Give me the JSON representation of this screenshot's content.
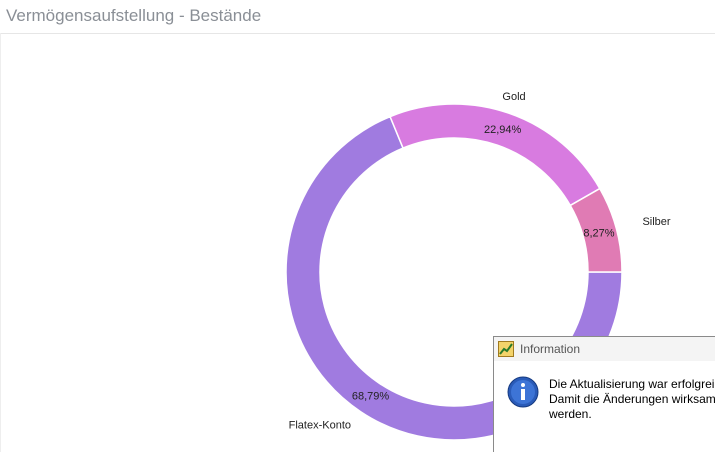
{
  "page_title": "Vermögensaufstellung - Bestände",
  "chart_data": {
    "type": "donut",
    "categories": [
      "Flatex-Konto",
      "Gold",
      "Silber"
    ],
    "values": [
      68.79,
      22.94,
      8.27
    ],
    "value_labels": [
      "68,79%",
      "22,94%",
      "8,27%"
    ],
    "colors": [
      "#a07be0",
      "#d87be0",
      "#e07bb4"
    ]
  },
  "dialog": {
    "title": "Information",
    "lines": [
      "Die Aktualisierung war erfolgrei",
      "Damit die Änderungen wirksam",
      "werden."
    ]
  }
}
